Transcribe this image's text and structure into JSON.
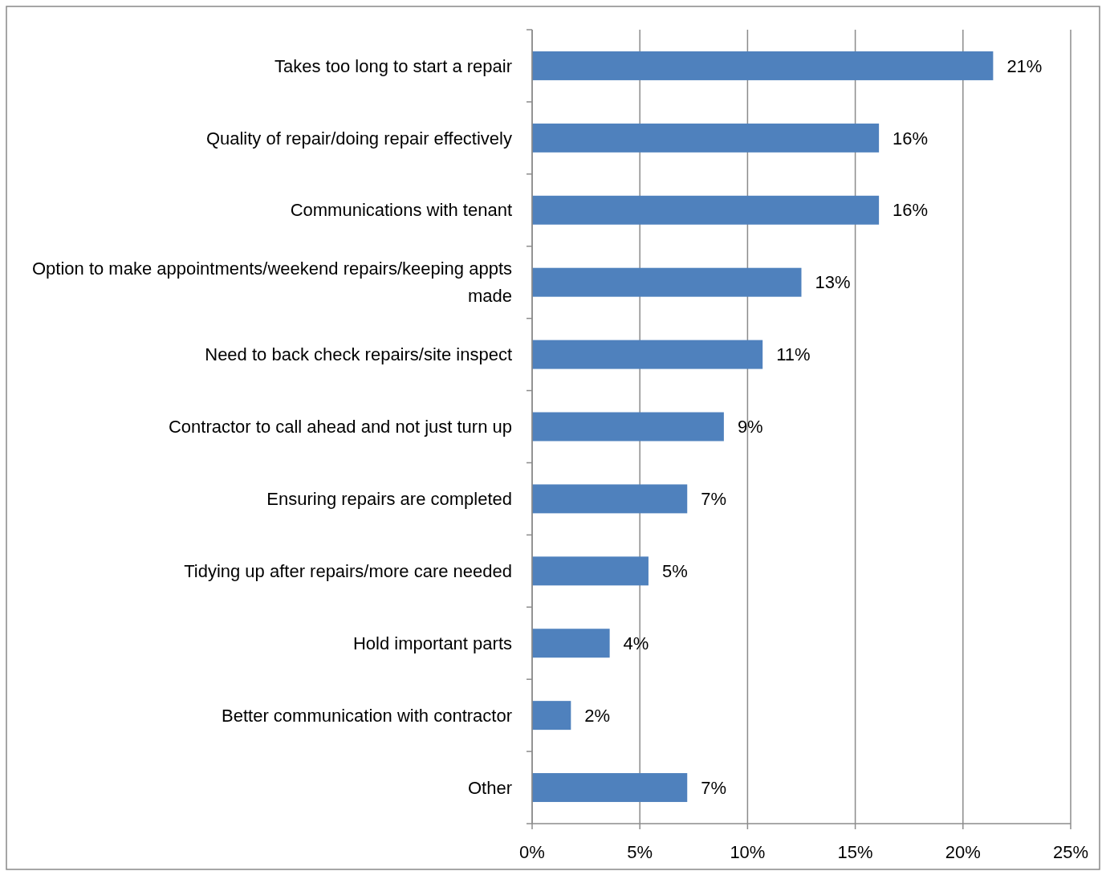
{
  "chart_data": {
    "type": "bar",
    "orientation": "horizontal",
    "categories": [
      "Takes too long to start a repair",
      "Quality of repair/doing repair effectively",
      "Communications with tenant",
      "Option to make appointments/weekend repairs/keeping appts made",
      "Need to back check repairs/site inspect",
      "Contractor to call ahead and not just turn up",
      "Ensuring repairs are completed",
      "Tidying up after repairs/more care needed",
      "Hold important parts",
      "Better communication with contractor",
      "Other"
    ],
    "values": [
      21.4,
      16.1,
      16.1,
      12.5,
      10.7,
      8.9,
      7.2,
      5.4,
      3.6,
      1.8,
      7.2
    ],
    "value_labels": [
      "21%",
      "16%",
      "16%",
      "13%",
      "11%",
      "9%",
      "7%",
      "5%",
      "4%",
      "2%",
      "7%"
    ],
    "color": "#4f81bd",
    "xlim": [
      0,
      25
    ],
    "xticks": [
      {
        "value": 0,
        "label": "0%"
      },
      {
        "value": 5,
        "label": "5%"
      },
      {
        "value": 10,
        "label": "10%"
      },
      {
        "value": 15,
        "label": "15%"
      },
      {
        "value": 20,
        "label": "20%"
      },
      {
        "value": 25,
        "label": "25%"
      }
    ],
    "grid": "x"
  }
}
